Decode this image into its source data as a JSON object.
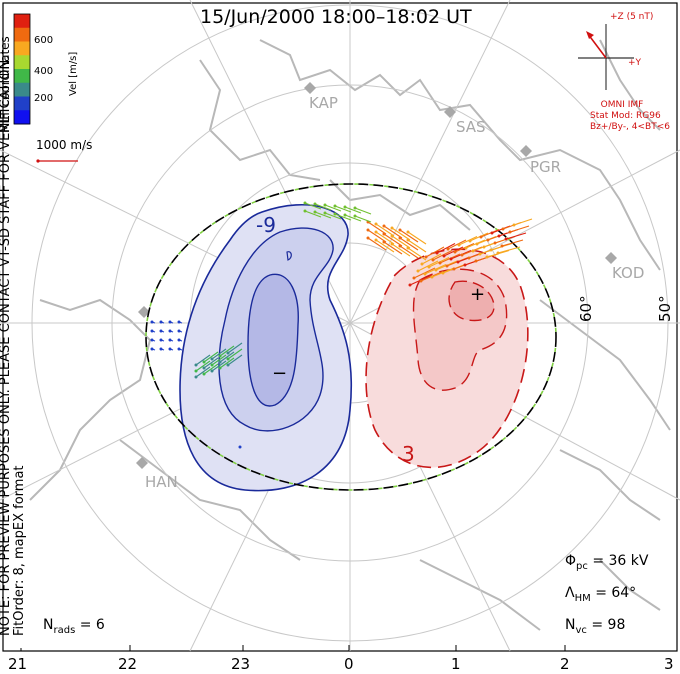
{
  "title": "15/Jun/2000 18:00–18:02 UT",
  "colorbar": {
    "ticks": [
      "600",
      "400",
      "200"
    ],
    "label": "Vel [m/s]",
    "colors": [
      "#e02010",
      "#f06a10",
      "#f8a820",
      "#a8d830",
      "#40b848",
      "#3a8a8a",
      "#2040c8",
      "#1010f0"
    ]
  },
  "side_text": {
    "coords": "MLT coordinates",
    "note": "NOTE: FOR PREVIEW PURPOSES ONLY. PLEASE CONTACT VT-SD STAFF FOR VERIFICATION.",
    "fit": "FitOrder: 8, mapEX format"
  },
  "scale_vector": "1000 m/s",
  "imf": {
    "z_label": "+Z (5 nT)",
    "y_label": "+Y",
    "lines": [
      "OMNI IMF",
      "Stat Mod: RG96",
      "Bz+/By-, 4<BT<6"
    ],
    "color": "#d01010"
  },
  "stations": [
    "KAP",
    "SAS",
    "PGR",
    "KOD",
    "HAN"
  ],
  "lat_labels": [
    "60°",
    "50°"
  ],
  "mlt_ticks": [
    "21",
    "22",
    "23",
    "0",
    "1",
    "2",
    "3"
  ],
  "contours": {
    "neg_label": "-9",
    "pos_label": "3",
    "min_mark": "−",
    "max_mark": "+",
    "neg_color": "#1a2a9a",
    "pos_color": "#c81818"
  },
  "stats": {
    "phi": {
      "symbol": "Φ",
      "sub": "pc",
      "value": "= 36 kV"
    },
    "lambda": {
      "symbol": "Λ",
      "sub": "HM",
      "value": "= 64°"
    },
    "nvc": {
      "symbol": "N",
      "sub": "vc",
      "value": "= 98"
    },
    "nrads": {
      "symbol": "N",
      "sub": "rads",
      "value": "= 6"
    }
  }
}
